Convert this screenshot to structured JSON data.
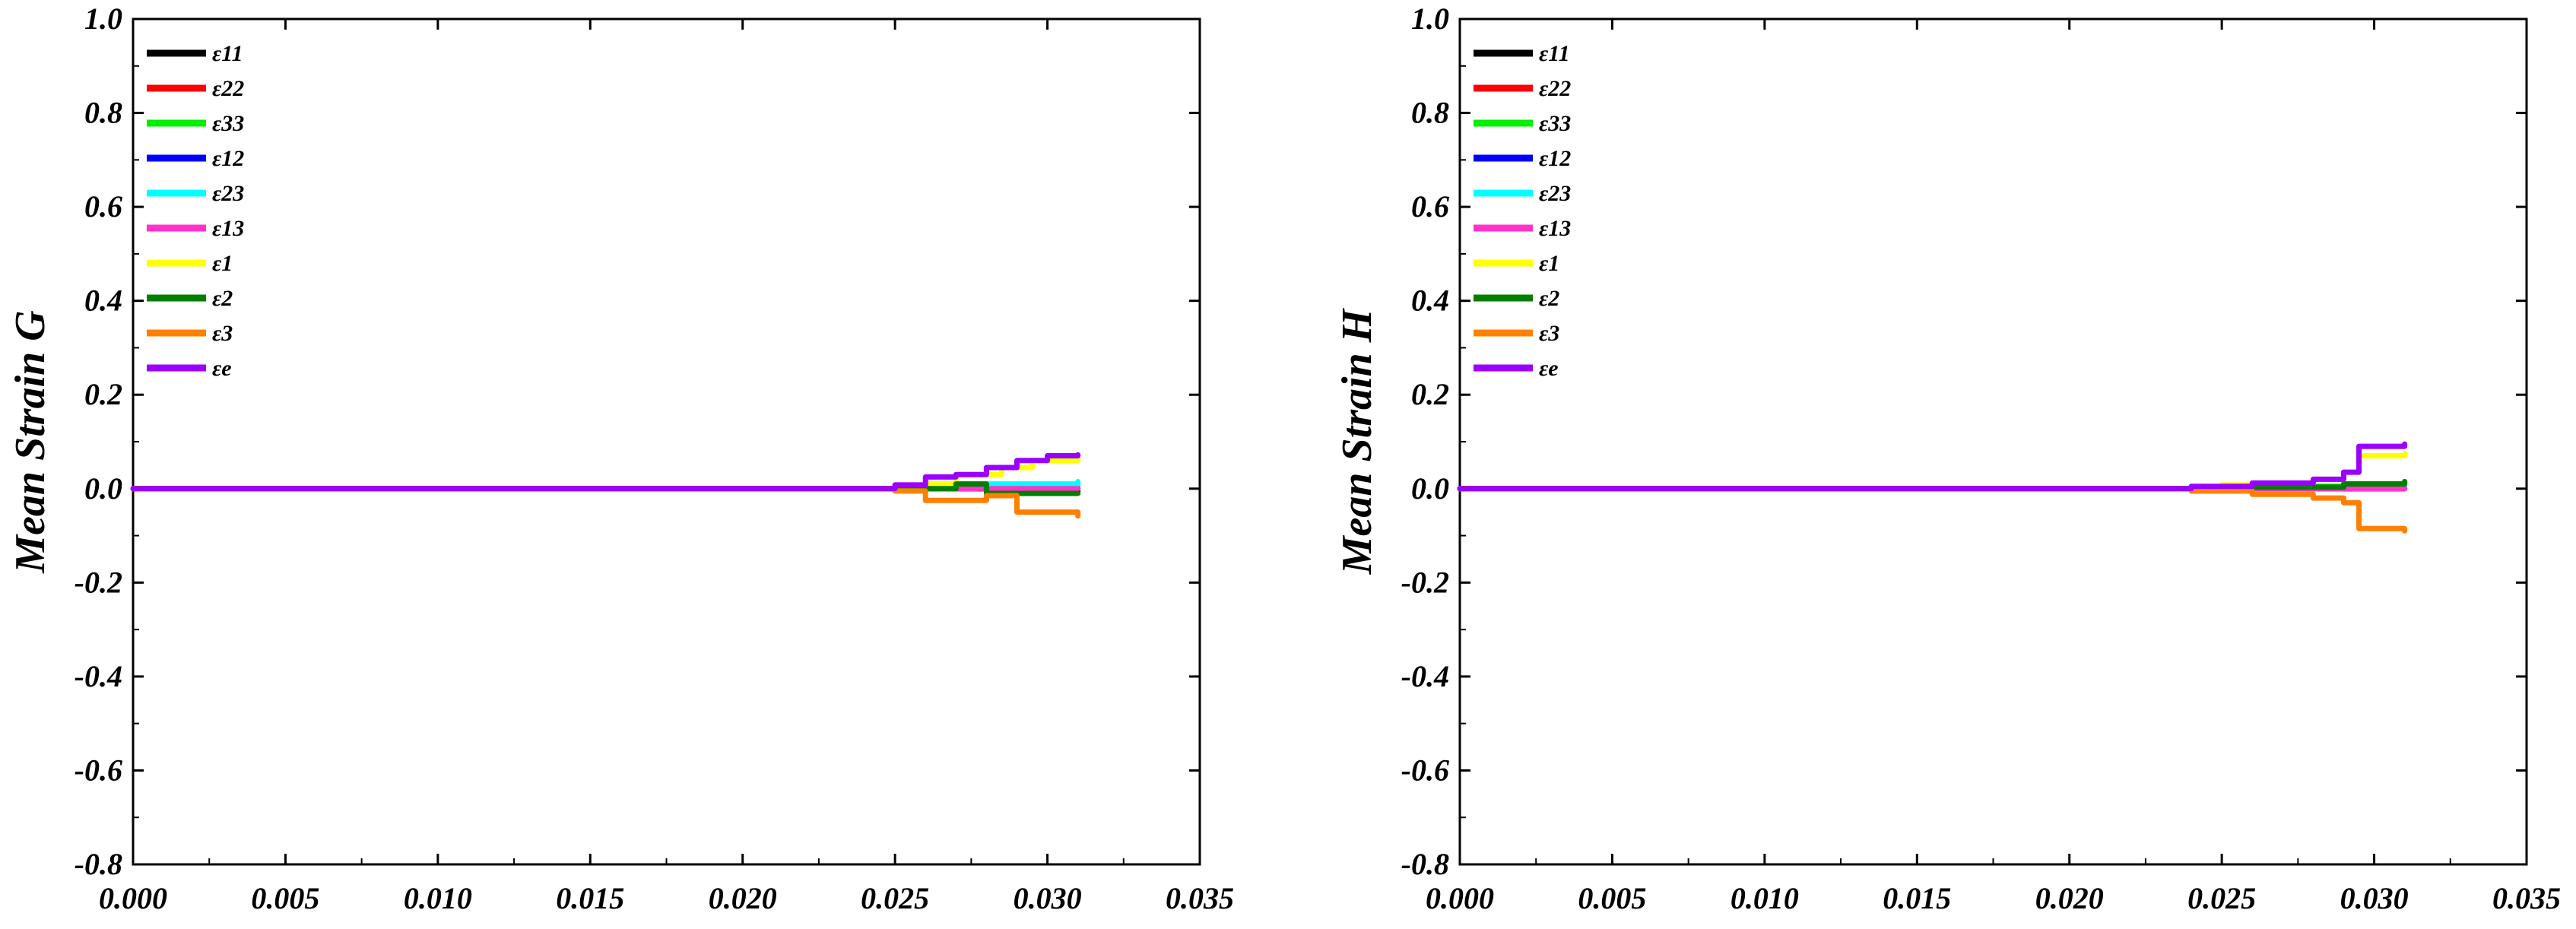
{
  "chart_data": [
    {
      "type": "line",
      "title": "",
      "xlabel": "",
      "ylabel": "Mean Strain G",
      "xlim": [
        0.0,
        0.035
      ],
      "ylim": [
        -0.8,
        1.0
      ],
      "x_ticks": [
        "0.000",
        "0.005",
        "0.010",
        "0.015",
        "0.020",
        "0.025",
        "0.030",
        "0.035"
      ],
      "y_ticks": [
        "-0.8",
        "-0.6",
        "-0.4",
        "-0.2",
        "0.0",
        "0.2",
        "0.4",
        "0.6",
        "0.8",
        "1.0"
      ],
      "grid": false,
      "legend": "top-left",
      "series": [
        {
          "name": "ε11",
          "color": "#000000",
          "x": [
            0,
            0.026,
            0.028,
            0.031
          ],
          "y": [
            0,
            0.0,
            -0.005,
            -0.005
          ]
        },
        {
          "name": "ε22",
          "color": "#ff0000",
          "x": [
            0,
            0.026,
            0.028,
            0.031
          ],
          "y": [
            0,
            0.0,
            0.0,
            0.0
          ]
        },
        {
          "name": "ε33",
          "color": "#00ee00",
          "x": [
            0,
            0.026,
            0.028,
            0.031
          ],
          "y": [
            0,
            0.003,
            0.005,
            0.005
          ]
        },
        {
          "name": "ε12",
          "color": "#0000ff",
          "x": [
            0,
            0.026,
            0.028,
            0.031
          ],
          "y": [
            0,
            0.0,
            0.0,
            0.0
          ]
        },
        {
          "name": "ε23",
          "color": "#00ffff",
          "x": [
            0,
            0.026,
            0.028,
            0.031
          ],
          "y": [
            0,
            0.005,
            0.01,
            0.015
          ]
        },
        {
          "name": "ε13",
          "color": "#ff33cc",
          "x": [
            0,
            0.026,
            0.028,
            0.031
          ],
          "y": [
            0,
            0.0,
            0.0,
            0.0
          ]
        },
        {
          "name": "ε1",
          "color": "#ffff00",
          "x": [
            0,
            0.026,
            0.027,
            0.0285,
            0.0295,
            0.031
          ],
          "y": [
            0,
            0.01,
            0.03,
            0.045,
            0.06,
            0.07
          ]
        },
        {
          "name": "ε2",
          "color": "#007f00",
          "x": [
            0,
            0.026,
            0.027,
            0.028,
            0.031
          ],
          "y": [
            0,
            0.0,
            0.01,
            -0.01,
            -0.01
          ]
        },
        {
          "name": "ε3",
          "color": "#ff8000",
          "x": [
            0,
            0.025,
            0.026,
            0.027,
            0.028,
            0.029,
            0.031
          ],
          "y": [
            0,
            -0.005,
            -0.025,
            -0.025,
            -0.015,
            -0.05,
            -0.058
          ]
        },
        {
          "name": "εe",
          "color": "#9900ff",
          "x": [
            0,
            0.025,
            0.026,
            0.027,
            0.028,
            0.029,
            0.03,
            0.031
          ],
          "y": [
            0,
            0.008,
            0.025,
            0.03,
            0.045,
            0.06,
            0.07,
            0.072
          ]
        }
      ]
    },
    {
      "type": "line",
      "title": "",
      "xlabel": "",
      "ylabel": "Mean Strain H",
      "xlim": [
        0.0,
        0.035
      ],
      "ylim": [
        -0.8,
        1.0
      ],
      "x_ticks": [
        "0.000",
        "0.005",
        "0.010",
        "0.015",
        "0.020",
        "0.025",
        "0.030",
        "0.035"
      ],
      "y_ticks": [
        "-0.8",
        "-0.6",
        "-0.4",
        "-0.2",
        "0.0",
        "0.2",
        "0.4",
        "0.6",
        "0.8",
        "1.0"
      ],
      "grid": false,
      "legend": "top-left",
      "series": [
        {
          "name": "ε11",
          "color": "#000000",
          "x": [
            0,
            0.029,
            0.031
          ],
          "y": [
            0,
            0.0,
            0.0
          ]
        },
        {
          "name": "ε22",
          "color": "#ff0000",
          "x": [
            0,
            0.029,
            0.031
          ],
          "y": [
            0,
            0.0,
            0.0
          ]
        },
        {
          "name": "ε33",
          "color": "#00ee00",
          "x": [
            0,
            0.027,
            0.029,
            0.031
          ],
          "y": [
            0,
            0.005,
            0.01,
            0.015
          ]
        },
        {
          "name": "ε12",
          "color": "#0000ff",
          "x": [
            0,
            0.029,
            0.031
          ],
          "y": [
            0,
            0.0,
            0.0
          ]
        },
        {
          "name": "ε23",
          "color": "#00ffff",
          "x": [
            0,
            0.029,
            0.031
          ],
          "y": [
            0,
            0.002,
            0.003
          ]
        },
        {
          "name": "ε13",
          "color": "#ff33cc",
          "x": [
            0,
            0.029,
            0.031
          ],
          "y": [
            0,
            0.0,
            0.0
          ]
        },
        {
          "name": "ε1",
          "color": "#ffff00",
          "x": [
            0,
            0.025,
            0.028,
            0.029,
            0.0295,
            0.031
          ],
          "y": [
            0,
            0.008,
            0.02,
            0.035,
            0.07,
            0.075
          ]
        },
        {
          "name": "ε2",
          "color": "#007f00",
          "x": [
            0,
            0.026,
            0.029,
            0.031
          ],
          "y": [
            0,
            0.003,
            0.01,
            0.015
          ]
        },
        {
          "name": "ε3",
          "color": "#ff8000",
          "x": [
            0,
            0.024,
            0.026,
            0.028,
            0.029,
            0.0295,
            0.031
          ],
          "y": [
            0,
            -0.005,
            -0.012,
            -0.02,
            -0.03,
            -0.085,
            -0.09
          ]
        },
        {
          "name": "εe",
          "color": "#9900ff",
          "x": [
            0,
            0.024,
            0.026,
            0.028,
            0.029,
            0.0295,
            0.031
          ],
          "y": [
            0,
            0.005,
            0.012,
            0.02,
            0.035,
            0.09,
            0.095
          ]
        }
      ]
    }
  ]
}
